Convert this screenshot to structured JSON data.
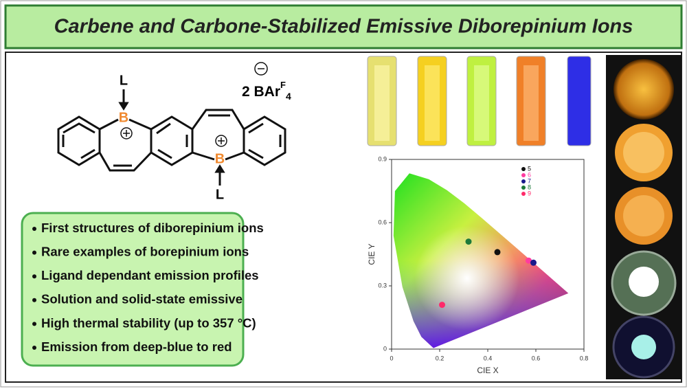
{
  "header": {
    "title": "Carbene and Carbone-Stabilized Emissive Diborepinium Ions"
  },
  "molecule": {
    "ligand_top": "L",
    "boron_top": "B",
    "boron_bottom": "B",
    "ligand_bottom": "L",
    "counterion": {
      "main": "2 BAr",
      "sup": "F",
      "sub": "4"
    }
  },
  "bullets": [
    "First structures of diborepinium ions",
    "Rare examples of borepinium ions",
    "Ligand dependant emission profiles",
    "Solution and solid-state emissive",
    "High thermal stability (up to 357 °C)",
    "Emission from deep-blue to red"
  ],
  "chart_data": {
    "type": "scatter",
    "xlabel": "CIE X",
    "ylabel": "CIE Y",
    "xlim": [
      0,
      0.8
    ],
    "ylim": [
      0,
      0.9
    ],
    "xticks": [
      0,
      0.2,
      0.4,
      0.6,
      0.8
    ],
    "yticks": [
      0,
      0.3,
      0.6,
      0.9
    ],
    "series": [
      {
        "name": "5",
        "color": "#111111",
        "x": [
          0.44
        ],
        "values": [
          0.46
        ]
      },
      {
        "name": "6",
        "color": "#ff3ca0",
        "x": [
          0.57
        ],
        "values": [
          0.42
        ]
      },
      {
        "name": "7",
        "color": "#1a1a8c",
        "x": [
          0.59
        ],
        "values": [
          0.41
        ]
      },
      {
        "name": "8",
        "color": "#1e7a3a",
        "x": [
          0.32
        ],
        "values": [
          0.51
        ]
      },
      {
        "name": "9",
        "color": "#ff2a6a",
        "x": [
          0.21
        ],
        "values": [
          0.21
        ]
      }
    ]
  }
}
